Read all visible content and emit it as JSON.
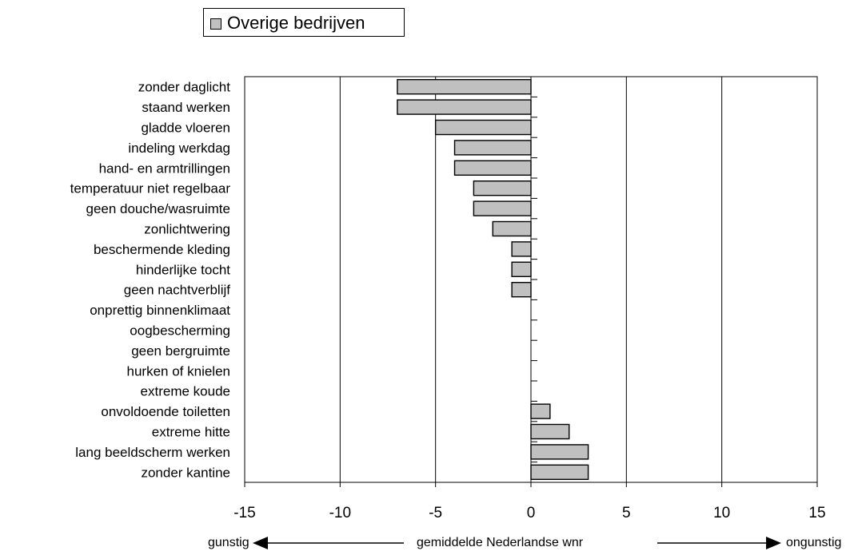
{
  "chart_data": {
    "type": "bar",
    "orientation": "horizontal",
    "categories": [
      "zonder daglicht",
      "staand werken",
      "gladde vloeren",
      "indeling werkdag",
      "hand- en armtrillingen",
      "temperatuur niet regelbaar",
      "geen douche/wasruimte",
      "zonlichtwering",
      "beschermende kleding",
      "hinderlijke tocht",
      "geen nachtverblijf",
      "onprettig binnenklimaat",
      "oogbescherming",
      "geen bergruimte",
      "hurken of knielen",
      "extreme koude",
      "onvoldoende toiletten",
      "extreme hitte",
      "lang beeldscherm werken",
      "zonder kantine"
    ],
    "series": [
      {
        "name": "Overige bedrijven",
        "values": [
          -7,
          -7,
          -5,
          -4,
          -4,
          -3,
          -3,
          -2,
          -1,
          -1,
          -1,
          0,
          0,
          0,
          0,
          0,
          1,
          2,
          3,
          3
        ]
      }
    ],
    "xlim": [
      -15,
      15
    ],
    "xticks": [
      -15,
      -10,
      -5,
      0,
      5,
      10,
      15
    ],
    "grid": "vertical",
    "legend_position": "top-left",
    "xlabel": "gemiddelde Nederlandse wnr",
    "left_label": "gunstig",
    "right_label": "ongunstig",
    "colors": {
      "bar_fill": "#c0c0c0",
      "bar_stroke": "#000000",
      "grid": "#000000"
    }
  }
}
